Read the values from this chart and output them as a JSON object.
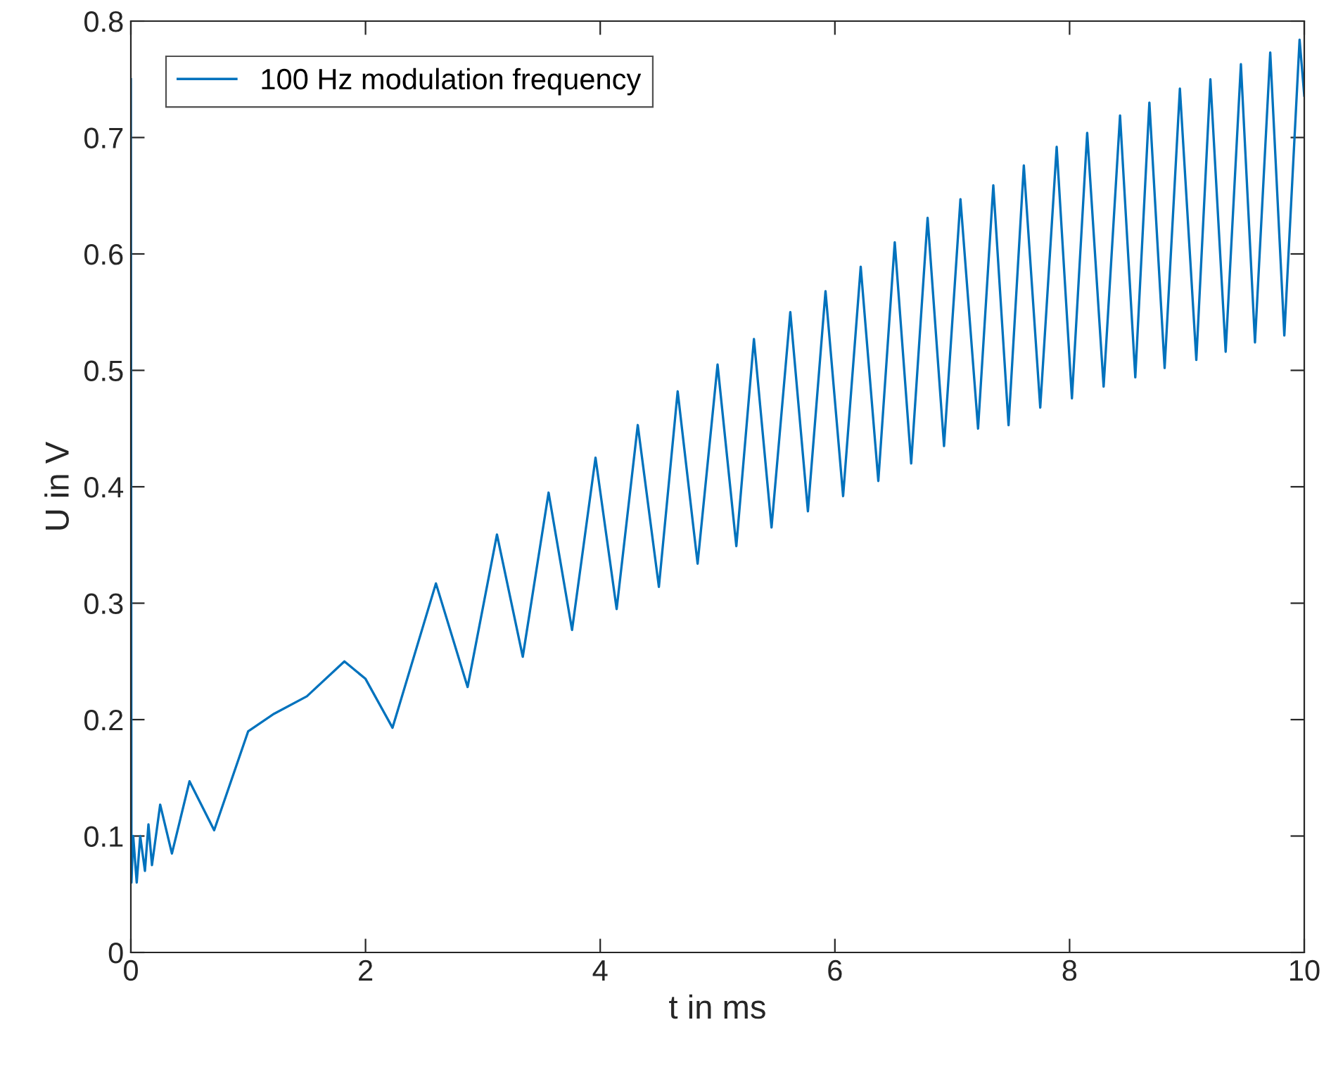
{
  "chart_data": {
    "type": "line",
    "xlabel": "t in ms",
    "ylabel": "U in V",
    "xlim": [
      0,
      10
    ],
    "ylim": [
      0,
      0.8
    ],
    "xticks": [
      0,
      2,
      4,
      6,
      8,
      10
    ],
    "yticks": [
      0,
      0.1,
      0.2,
      0.3,
      0.4,
      0.5,
      0.6,
      0.7,
      0.8
    ],
    "grid": false,
    "legend": "top left",
    "series": [
      {
        "name": "100 Hz modulation frequency",
        "color": "#0072bd",
        "x": [
          0,
          0.005,
          0.02,
          0.05,
          0.08,
          0.12,
          0.15,
          0.18,
          0.25,
          0.35,
          0.5,
          0.71,
          1.0,
          1.22,
          1.5,
          1.82,
          2.0,
          2.23,
          2.6,
          2.87,
          3.12,
          3.34,
          3.56,
          3.76,
          3.96,
          4.14,
          4.32,
          4.5,
          4.66,
          4.83,
          5.0,
          5.16,
          5.31,
          5.46,
          5.62,
          5.77,
          5.92,
          6.07,
          6.22,
          6.37,
          6.51,
          6.65,
          6.79,
          6.93,
          7.07,
          7.22,
          7.35,
          7.48,
          7.61,
          7.75,
          7.89,
          8.02,
          8.15,
          8.29,
          8.43,
          8.56,
          8.68,
          8.81,
          8.94,
          9.08,
          9.2,
          9.33,
          9.46,
          9.58,
          9.71,
          9.83,
          9.96,
          10
        ],
        "values": [
          0.75,
          0.06,
          0.1,
          0.06,
          0.1,
          0.07,
          0.11,
          0.075,
          0.127,
          0.085,
          0.147,
          0.105,
          0.19,
          0.205,
          0.22,
          0.25,
          0.235,
          0.193,
          0.317,
          0.228,
          0.359,
          0.254,
          0.395,
          0.277,
          0.425,
          0.295,
          0.453,
          0.314,
          0.482,
          0.334,
          0.505,
          0.349,
          0.527,
          0.365,
          0.55,
          0.379,
          0.568,
          0.392,
          0.589,
          0.405,
          0.61,
          0.42,
          0.631,
          0.435,
          0.647,
          0.45,
          0.659,
          0.453,
          0.676,
          0.468,
          0.692,
          0.476,
          0.704,
          0.486,
          0.719,
          0.494,
          0.73,
          0.502,
          0.742,
          0.509,
          0.75,
          0.516,
          0.763,
          0.524,
          0.773,
          0.53,
          0.784,
          0.736
        ]
      }
    ]
  }
}
